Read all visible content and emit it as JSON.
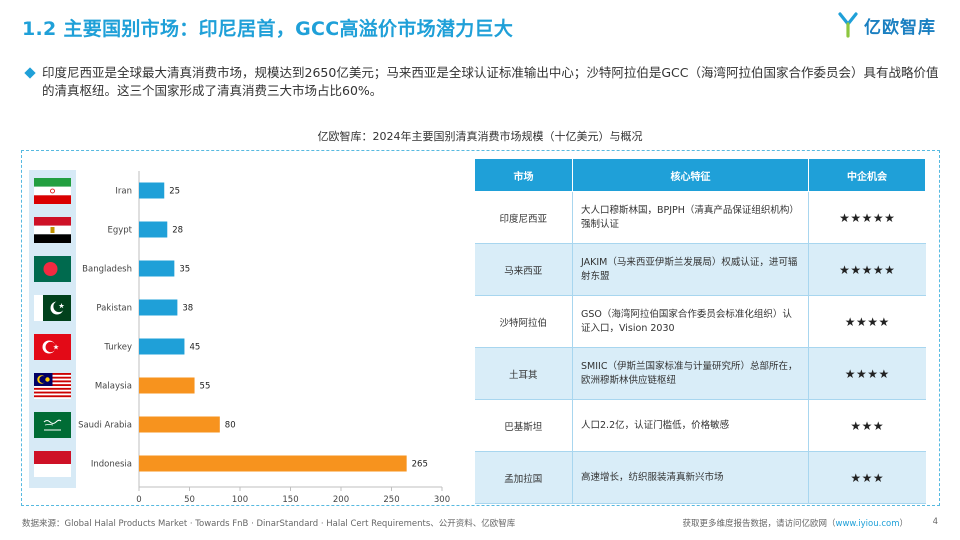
{
  "header": {
    "title": "1.2 主要国别市场：印尼居首，GCC高溢价市场潜力巨大",
    "logo_text": "亿欧智库"
  },
  "intro": {
    "text": "印度尼西亚是全球最大清真消费市场，规模达到2650亿美元；马来西亚是全球认证标准输出中心；沙特阿拉伯是GCC（海湾阿拉伯国家合作委员会）具有战略价值的清真枢纽。这三个国家形成了清真消费三大市场占比60%。"
  },
  "chart_title": "亿欧智库：2024年主要国别清真消费市场规模（十亿美元）与概况",
  "chart_data": {
    "type": "bar",
    "orientation": "horizontal",
    "title": "亿欧智库：2024年主要国别清真消费市场规模（十亿美元）与概况",
    "categories": [
      "Iran",
      "Egypt",
      "Bangladesh",
      "Pakistan",
      "Turkey",
      "Malaysia",
      "Saudi Arabia",
      "Indonesia"
    ],
    "values": [
      25,
      28,
      35,
      38,
      45,
      55,
      80,
      265
    ],
    "value_labels": [
      "25",
      "28",
      "35",
      "38",
      "45",
      "55",
      "80",
      "265"
    ],
    "bar_colors": [
      "#1fa0d8",
      "#1fa0d8",
      "#1fa0d8",
      "#1fa0d8",
      "#1fa0d8",
      "#f7931e",
      "#f7931e",
      "#f7931e"
    ],
    "xlim": [
      0,
      300
    ],
    "x_ticks": [
      0,
      50,
      100,
      150,
      200,
      250,
      300
    ],
    "x_tick_labels": [
      "0",
      "50",
      "100",
      "150",
      "200",
      "250",
      "300"
    ],
    "xlabel": "",
    "ylabel": "",
    "grid": false
  },
  "colors": {
    "accent": "#1fa0d8",
    "highlight": "#f7931e"
  },
  "table": {
    "headers": [
      "市场",
      "核心特征",
      "中企机会"
    ],
    "rows": [
      {
        "market": "印度尼西亚",
        "feature": "大人口穆斯林国，BPJPH（清真产品保证组织机构）强制认证",
        "rating": "★★★★★"
      },
      {
        "market": "马来西亚",
        "feature": "JAKIM（马来西亚伊斯兰发展局）权威认证，进可辐射东盟",
        "rating": "★★★★★"
      },
      {
        "market": "沙特阿拉伯",
        "feature": "GSO（海湾阿拉伯国家合作委员会标准化组织）认证入口，Vision 2030",
        "rating": "★★★★"
      },
      {
        "market": "土耳其",
        "feature": "SMIIC（伊斯兰国家标准与计量研究所）总部所在，欧洲穆斯林供应链枢纽",
        "rating": "★★★★"
      },
      {
        "market": "巴基斯坦",
        "feature": "人口2.2亿，认证门槛低，价格敏感",
        "rating": "★★★"
      },
      {
        "market": "孟加拉国",
        "feature": "高速增长，纺织服装清真新兴市场",
        "rating": "★★★"
      }
    ]
  },
  "footer": {
    "source": "数据来源：Global Halal Products Market · Towards FnB · DinarStandard · Halal Cert Requirements、公开资料、亿欧智库",
    "cta_prefix": "获取更多维度报告数据，请访问亿欧网（",
    "cta_link": "www.iyiou.com",
    "cta_suffix": "）",
    "page": "4"
  },
  "flags": [
    "iran-flag",
    "egypt-flag",
    "bangladesh-flag",
    "pakistan-flag",
    "turkey-flag",
    "malaysia-flag",
    "saudi-arabia-flag",
    "indonesia-flag"
  ]
}
